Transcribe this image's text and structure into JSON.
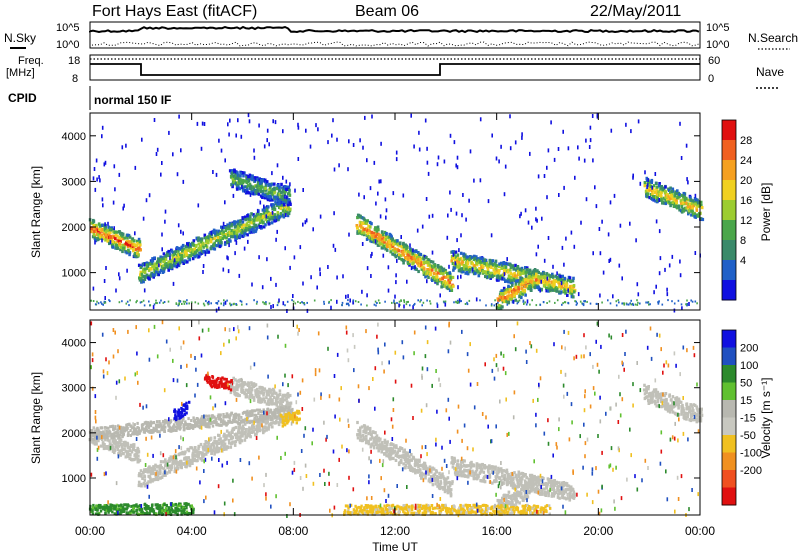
{
  "header": {
    "station": "Fort Hays East (fitACF)",
    "beam": "Beam 06",
    "date": "22/May/2011"
  },
  "top_panels": {
    "nsky_label": "N.Sky",
    "nsearch_label": "N.Search",
    "noise_ticks_left": [
      "10^5",
      "10^0"
    ],
    "noise_ticks_right": [
      "10^5",
      "10^0"
    ],
    "freq_label_line1": "Freq.",
    "freq_label_line2": "[MHz]",
    "freq_ticks": [
      "18",
      "8"
    ],
    "nave_label": "Nave",
    "nave_ticks": [
      "60",
      "0"
    ],
    "cpid_label": "CPID",
    "cpid_value": "normal 150 IF"
  },
  "colors": {
    "power": [
      "#1010e0",
      "#2060c8",
      "#3a8a6a",
      "#4aa64a",
      "#9ccc30",
      "#f0d020",
      "#f5a020",
      "#f06020",
      "#e01010"
    ],
    "velocity": [
      "#1010e0",
      "#2050c0",
      "#2c8a2c",
      "#60c030",
      "#b8b8b0",
      "#c8c8c0",
      "#f0c020",
      "#f09020",
      "#f05020",
      "#e01010"
    ]
  },
  "chart_data": [
    {
      "type": "heatmap",
      "title": "Power",
      "xlabel": "Time UT",
      "ylabel": "Slant Range [km]",
      "x_ticks": [
        "00:00",
        "04:00",
        "08:00",
        "12:00",
        "16:00",
        "20:00",
        "00:00"
      ],
      "xlim_hours": [
        0,
        24
      ],
      "y_ticks": [
        "1000",
        "2000",
        "3000",
        "4000"
      ],
      "ylim_km": [
        180,
        4500
      ],
      "colorbar": {
        "label": "Power [dB]",
        "ticks": [
          "4",
          "8",
          "12",
          "16",
          "20",
          "24",
          "28"
        ],
        "range": [
          0,
          30
        ]
      },
      "features": [
        {
          "start_ut": 0.0,
          "end_ut": 1.9,
          "start_km": 2000,
          "end_km": 1550,
          "peak_db": 29
        },
        {
          "start_ut": 1.9,
          "end_ut": 7.8,
          "start_km": 1000,
          "end_km": 2500,
          "peak_db": 20
        },
        {
          "start_ut": 5.5,
          "end_ut": 7.8,
          "start_km": 3100,
          "end_km": 2700,
          "peak_db": 16
        },
        {
          "start_ut": 10.5,
          "end_ut": 14.2,
          "start_km": 2100,
          "end_km": 800,
          "peak_db": 28
        },
        {
          "start_ut": 14.2,
          "end_ut": 19.0,
          "start_km": 1300,
          "end_km": 700,
          "peak_db": 24
        },
        {
          "start_ut": 16.0,
          "end_ut": 17.5,
          "start_km": 400,
          "end_km": 900,
          "peak_db": 28
        },
        {
          "start_ut": 21.8,
          "end_ut": 24.0,
          "start_km": 2900,
          "end_km": 2400,
          "peak_db": 24
        }
      ]
    },
    {
      "type": "heatmap",
      "title": "Velocity",
      "xlabel": "Time UT",
      "ylabel": "Slant Range [km]",
      "x_ticks": [
        "00:00",
        "04:00",
        "08:00",
        "12:00",
        "16:00",
        "20:00",
        "00:00"
      ],
      "xlim_hours": [
        0,
        24
      ],
      "y_ticks": [
        "1000",
        "2000",
        "3000",
        "4000"
      ],
      "ylim_km": [
        180,
        4500
      ],
      "colorbar": {
        "label": "Velocity [m s⁻¹]",
        "ticks": [
          "200",
          "100",
          "50",
          "15",
          "-15",
          "-50",
          "-100",
          "-200"
        ],
        "range": [
          -250,
          250
        ]
      },
      "features": [
        {
          "start_ut": 0.0,
          "end_ut": 8.0,
          "start_km": 2000,
          "end_km": 2500,
          "velocity_ms": 0
        },
        {
          "start_ut": 3.3,
          "end_ut": 3.8,
          "start_km": 2400,
          "end_km": 2600,
          "velocity_ms": 220
        },
        {
          "start_ut": 4.5,
          "end_ut": 5.5,
          "start_km": 3200,
          "end_km": 3100,
          "velocity_ms": -220
        },
        {
          "start_ut": 7.5,
          "end_ut": 8.2,
          "start_km": 2300,
          "end_km": 2400,
          "velocity_ms": -80
        },
        {
          "start_ut": 10.0,
          "end_ut": 18.0,
          "start_km": 300,
          "end_km": 300,
          "velocity_ms": -60
        },
        {
          "start_ut": 0.0,
          "end_ut": 4.0,
          "start_km": 300,
          "end_km": 350,
          "velocity_ms": 60
        }
      ]
    }
  ]
}
